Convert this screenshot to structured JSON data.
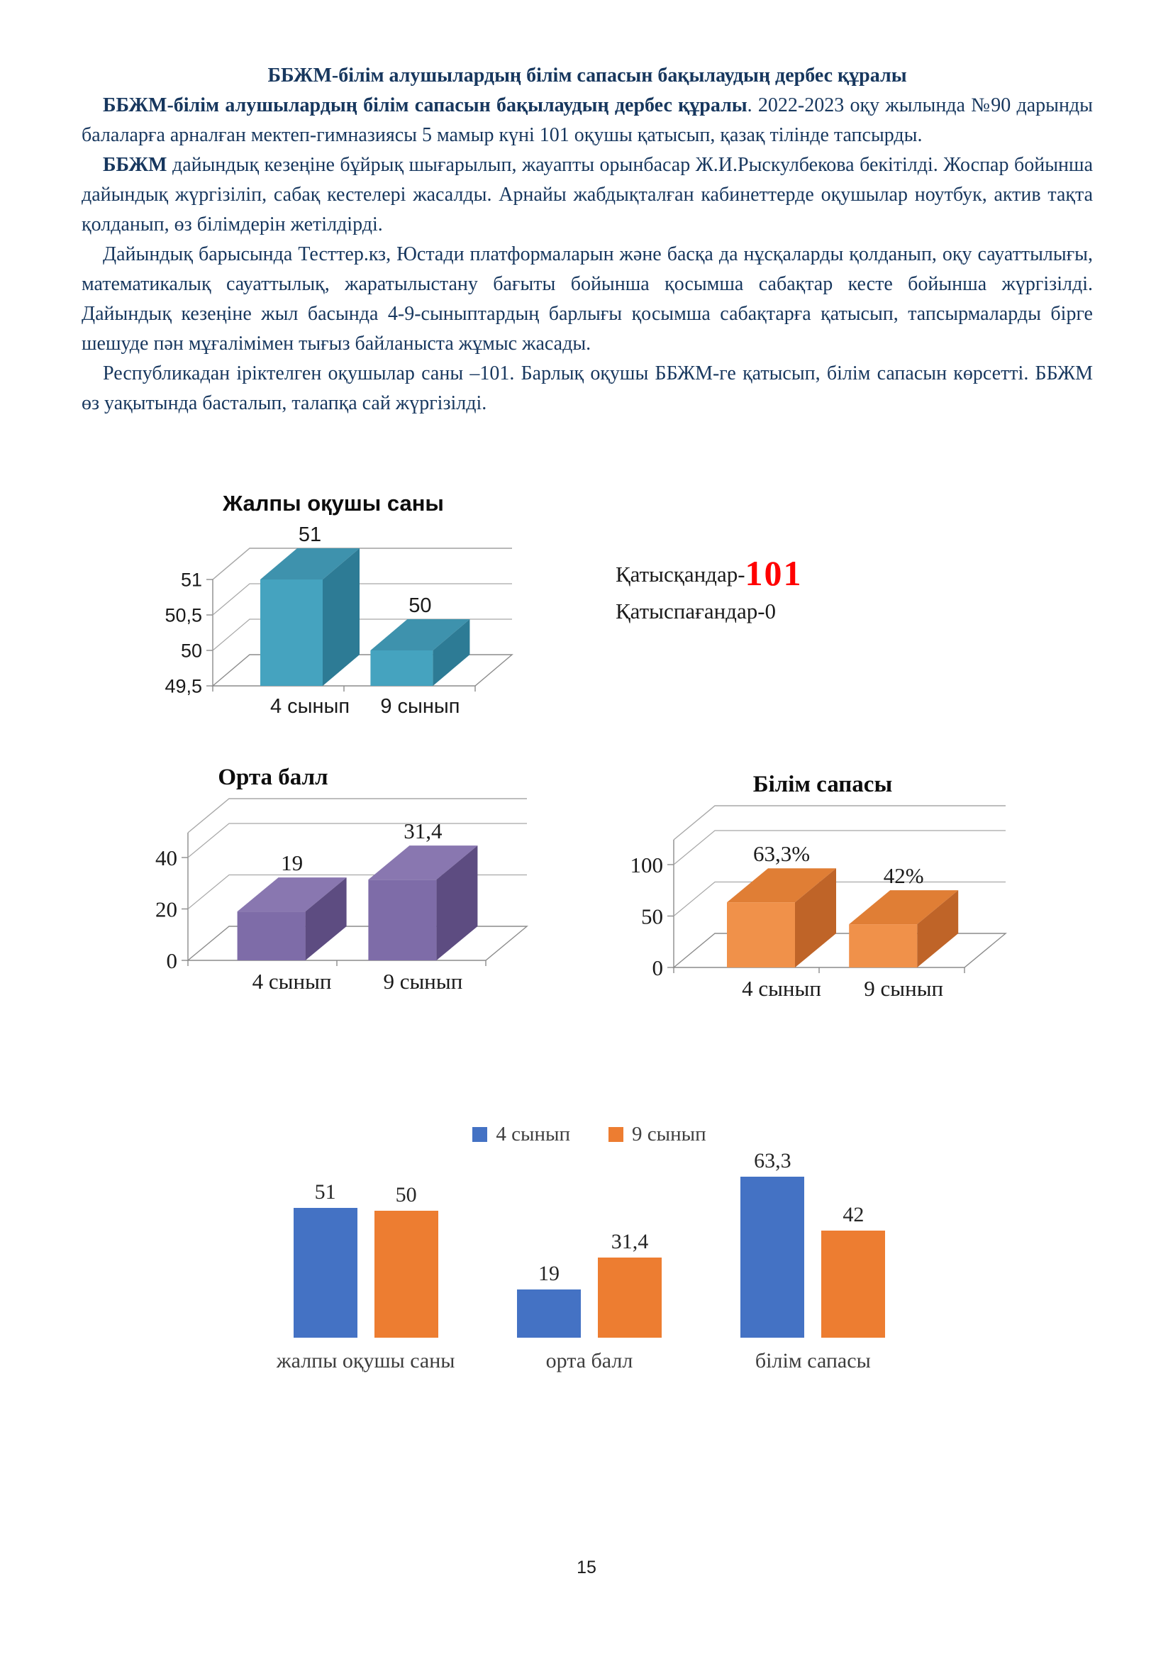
{
  "document": {
    "text_color": "#17375e",
    "title": "ББЖМ-білім алушылардың білім сапасын бақылаудың дербес құралы",
    "paragraphs": [
      {
        "bold_lead": "ББЖМ-білім алушылардың білім сапасын бақылаудың дербес құралы",
        "rest": ". 2022-2023 оқу жылында №90 дарынды балаларға арналған мектеп-гимназиясы 5 мамыр күні 101 оқушы қатысып, қазақ тілінде тапсырды."
      },
      {
        "bold_lead": "ББЖМ",
        "rest": " дайындық кезеңіне бұйрық шығарылып, жауапты орынбасар Ж.И.Рыскулбекова бекітілді. Жоспар бойынша дайындық жүргізіліп, сабақ кестелері жасалды. Арнайы жабдықталған кабинеттерде оқушылар ноутбук, актив тақта қолданып, өз білімдерін жетілдірді."
      },
      {
        "bold_lead": "",
        "rest": "Дайындық барысында Тесттер.кз, Юстади платформаларын және басқа да нұсқаларды қолданып, оқу сауаттылығы, математикалық сауаттылық, жаратылыстану бағыты бойынша қосымша сабақтар кесте бойынша жүргізілді. Дайындық кезеңіне жыл басында 4-9-сыныптардың барлығы қосымша сабақтарға қатысып, тапсырмаларды бірге шешуде пән мұғалімімен тығыз байланыста жұмыс жасады."
      },
      {
        "bold_lead": "",
        "rest": "Республикадан іріктелген оқушылар саны –101. Барлық оқушы ББЖМ-ге қатысып, білім сапасын көрсетті. ББЖМ өз уақытында басталып, талапқа сай жүргізілді."
      }
    ]
  },
  "annotation": {
    "participated_label": "Қатысқандар-",
    "participated_value": "101",
    "participated_color": "#ff0000",
    "absent": "Қатыспағандар-0"
  },
  "chart_data": [
    {
      "type": "bar",
      "style": "3d",
      "title": "Жалпы оқушы саны",
      "categories": [
        "4 сынып",
        "9 сынып"
      ],
      "values": [
        51,
        50
      ],
      "data_labels": [
        "51",
        "50"
      ],
      "ytick_labels": [
        "49,5",
        "50",
        "50,5",
        "51"
      ],
      "ytick_values": [
        49.5,
        50,
        50.5,
        51
      ],
      "ylim": [
        49.5,
        51
      ],
      "grid": true,
      "label_font": "sans",
      "colors": {
        "front": "#45a3bf",
        "top": "#3e92ad",
        "side": "#2d7b95"
      }
    },
    {
      "type": "bar",
      "style": "3d",
      "title": "Орта балл",
      "categories": [
        "4 сынып",
        "9 сынып"
      ],
      "values": [
        19,
        31.4
      ],
      "data_labels": [
        "19",
        "31,4"
      ],
      "ytick_labels": [
        "0",
        "20",
        "40"
      ],
      "ytick_values": [
        0,
        20,
        40
      ],
      "ylim": [
        0,
        40
      ],
      "grid": true,
      "label_font": "serif",
      "colors": {
        "front": "#7e6ca8",
        "top": "#8977b0",
        "side": "#5d4c81"
      }
    },
    {
      "type": "bar",
      "style": "3d",
      "title": "Білім сапасы",
      "categories": [
        "4 сынып",
        "9 сынып"
      ],
      "values": [
        63.3,
        42
      ],
      "data_labels": [
        "63,3%",
        "42%"
      ],
      "ytick_labels": [
        "0",
        "50",
        "100"
      ],
      "ytick_values": [
        0,
        50,
        100
      ],
      "ylim": [
        0,
        100
      ],
      "grid": true,
      "label_font": "serif",
      "colors": {
        "front": "#f0914a",
        "top": "#e07e35",
        "side": "#bf6428"
      }
    },
    {
      "type": "bar",
      "style": "grouped-2d",
      "title": "",
      "categories": [
        "жалпы оқушы саны",
        "орта балл",
        "білім сапасы"
      ],
      "series": [
        {
          "name": "4 сынып",
          "color": "#4472c4",
          "values": [
            51,
            19,
            63.3
          ],
          "data_labels": [
            "51",
            "19",
            "63,3"
          ]
        },
        {
          "name": "9 сынып",
          "color": "#ed7d31",
          "values": [
            50,
            31.4,
            42
          ],
          "data_labels": [
            "50",
            "31,4",
            "42"
          ]
        }
      ],
      "ylim": [
        0,
        63.3
      ],
      "grid": false,
      "legend_position": "top"
    }
  ],
  "page": {
    "number": "15"
  }
}
